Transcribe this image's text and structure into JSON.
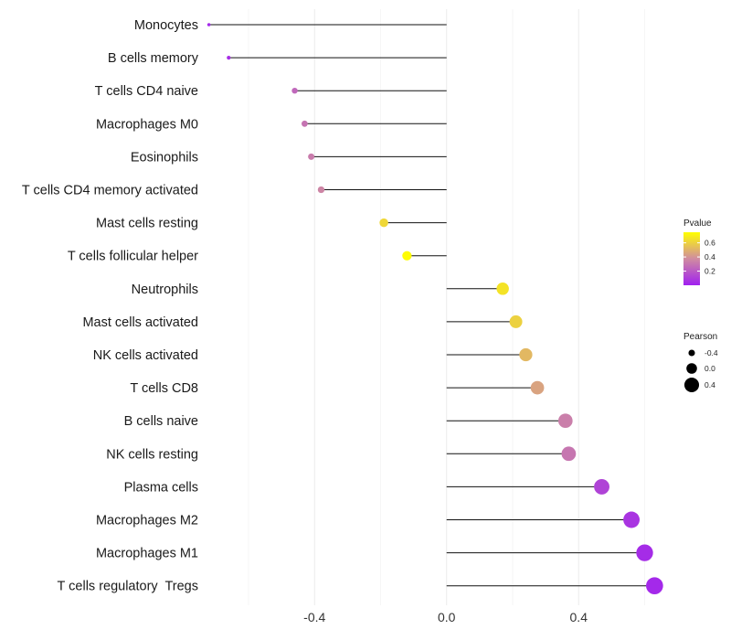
{
  "chart_data": {
    "type": "lollipop",
    "title": "",
    "xlabel": "",
    "ylabel": "",
    "xlim": [
      -0.73,
      0.82
    ],
    "x_ticks": [
      -0.4,
      0.0,
      0.4
    ],
    "x_tick_labels": [
      "-0.4",
      "0.0",
      "0.4"
    ],
    "grid": true,
    "categories": [
      "Monocytes",
      "B cells memory",
      "T cells CD4 naive",
      "Macrophages M0",
      "Eosinophils",
      "T cells CD4 memory activated",
      "Mast cells resting",
      "T cells follicular helper",
      "Neutrophils",
      "Mast cells activated",
      "NK cells activated",
      "T cells CD8",
      "B cells naive",
      "NK cells resting",
      "Plasma cells",
      "Macrophages M2",
      "Macrophages M1",
      "T cells regulatory  Tregs"
    ],
    "pearson": [
      -0.72,
      -0.66,
      -0.46,
      -0.43,
      -0.41,
      -0.38,
      -0.19,
      -0.12,
      0.17,
      0.21,
      0.24,
      0.275,
      0.36,
      0.37,
      0.47,
      0.56,
      0.6,
      0.63
    ],
    "pvalue": [
      0.03,
      0.05,
      0.25,
      0.29,
      0.32,
      0.35,
      0.62,
      0.74,
      0.66,
      0.6,
      0.52,
      0.45,
      0.33,
      0.3,
      0.12,
      0.07,
      0.04,
      0.03
    ],
    "legend": {
      "color_title": "Pvalue",
      "color_ticks": [
        0.2,
        0.4,
        0.6
      ],
      "color_tick_labels": [
        "0.2",
        "0.4",
        "0.6"
      ],
      "color_range": [
        0.0,
        0.75
      ],
      "color_low": "#a020f0",
      "color_high": "#ffff00",
      "size_title": "Pearson",
      "size_values": [
        -0.4,
        0.0,
        0.4
      ],
      "size_labels": [
        "-0.4",
        "0.0",
        "0.4"
      ],
      "position": "right"
    }
  }
}
